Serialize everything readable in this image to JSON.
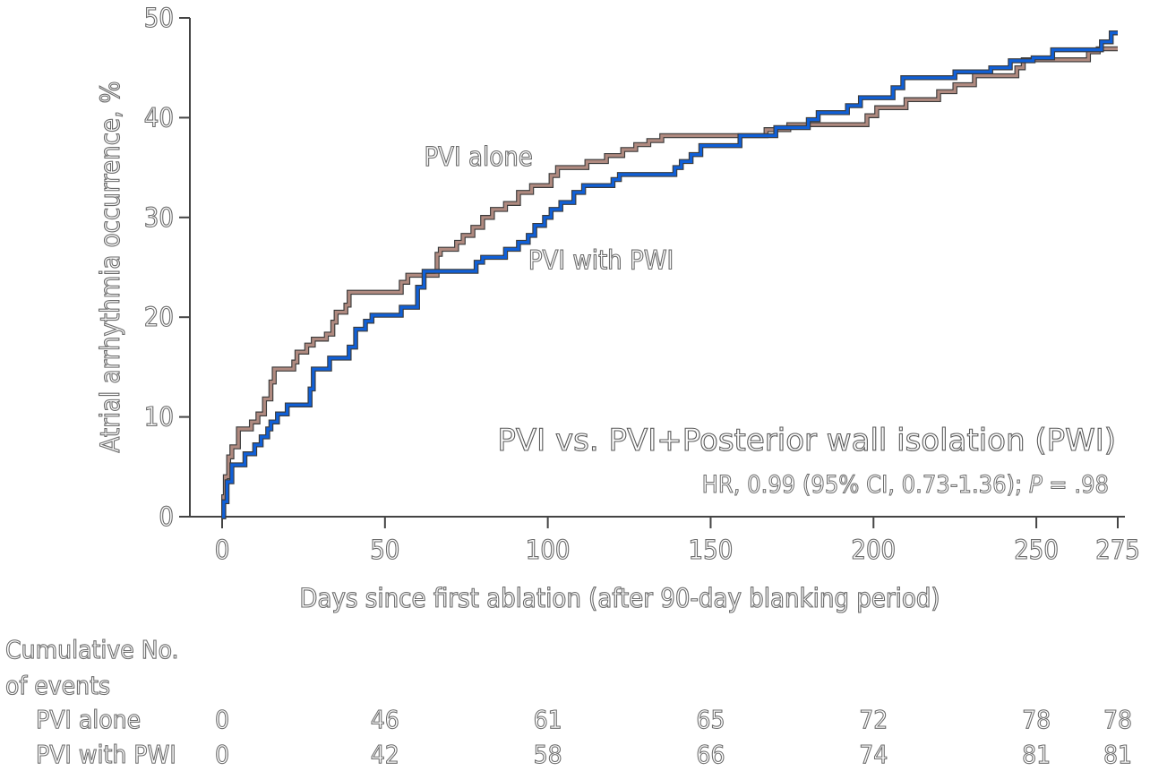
{
  "colors": {
    "pvi_alone": "#b08a80",
    "pvi_with_pwi": "#1060d8",
    "axis": "#444444"
  },
  "chart_data": {
    "type": "line",
    "step": true,
    "xlabel": "Days since first ablation (after 90-day blanking period)",
    "ylabel": "Atrial arrhythmia occurrence, %",
    "xlim": [
      0,
      275
    ],
    "ylim": [
      0,
      50
    ],
    "x_ticks": [
      0,
      50,
      100,
      150,
      200,
      250,
      275
    ],
    "y_ticks": [
      0,
      10,
      20,
      30,
      40,
      50
    ],
    "annotation": {
      "title": "PVI vs. PVI+Posterior wall isolation (PWI)",
      "hr_text_before_p": "HR, 0.99 (95% CI, 0.73-1.36); ",
      "p_symbol": "P",
      "hr_text_after_p": " = .98"
    },
    "series": [
      {
        "name": "PVI alone",
        "points": [
          [
            0,
            0
          ],
          [
            0.5,
            2
          ],
          [
            1,
            4
          ],
          [
            2,
            6
          ],
          [
            3,
            7
          ],
          [
            5,
            8.8
          ],
          [
            9,
            9.5
          ],
          [
            11,
            10.3
          ],
          [
            13,
            11.8
          ],
          [
            15,
            13.5
          ],
          [
            16,
            14.8
          ],
          [
            22,
            15.5
          ],
          [
            23,
            16.5
          ],
          [
            26,
            17.2
          ],
          [
            28,
            17.8
          ],
          [
            32,
            18.3
          ],
          [
            34,
            19.5
          ],
          [
            35,
            20.5
          ],
          [
            38,
            21.2
          ],
          [
            39,
            22.5
          ],
          [
            55,
            23.5
          ],
          [
            57,
            24.2
          ],
          [
            66,
            26.3
          ],
          [
            67,
            26.8
          ],
          [
            72,
            27.5
          ],
          [
            74,
            28.2
          ],
          [
            77,
            29.0
          ],
          [
            80,
            30.0
          ],
          [
            83,
            30.8
          ],
          [
            87,
            31.4
          ],
          [
            91,
            32.5
          ],
          [
            95,
            33.2
          ],
          [
            101,
            34.2
          ],
          [
            103,
            35.0
          ],
          [
            112,
            35.6
          ],
          [
            118,
            36.2
          ],
          [
            123,
            36.8
          ],
          [
            127,
            37.3
          ],
          [
            131,
            37.7
          ],
          [
            135,
            38.2
          ],
          [
            167,
            38.8
          ],
          [
            174,
            39.3
          ],
          [
            198,
            40.2
          ],
          [
            201,
            41.0
          ],
          [
            210,
            41.8
          ],
          [
            220,
            42.6
          ],
          [
            225,
            43.3
          ],
          [
            231,
            44.2
          ],
          [
            244,
            45.0
          ],
          [
            246,
            45.8
          ],
          [
            266,
            46.6
          ],
          [
            269,
            46.9
          ],
          [
            275,
            46.9
          ]
        ]
      },
      {
        "name": "PVI with PWI",
        "points": [
          [
            0,
            0
          ],
          [
            0.5,
            1.5
          ],
          [
            1.5,
            3.5
          ],
          [
            3,
            5.2
          ],
          [
            7,
            6.3
          ],
          [
            10,
            7.2
          ],
          [
            12,
            8.0
          ],
          [
            14,
            8.8
          ],
          [
            15,
            9.5
          ],
          [
            17,
            10.3
          ],
          [
            20,
            11.2
          ],
          [
            27,
            12.8
          ],
          [
            28,
            14.8
          ],
          [
            33,
            15.9
          ],
          [
            39,
            17.0
          ],
          [
            41,
            18.8
          ],
          [
            44,
            19.6
          ],
          [
            46,
            20.2
          ],
          [
            55,
            21.0
          ],
          [
            60,
            23.0
          ],
          [
            62,
            24.6
          ],
          [
            78,
            25.5
          ],
          [
            80,
            26.0
          ],
          [
            87,
            26.8
          ],
          [
            91,
            27.5
          ],
          [
            94,
            28.2
          ],
          [
            96,
            29.2
          ],
          [
            99,
            30.0
          ],
          [
            101,
            30.8
          ],
          [
            104,
            31.5
          ],
          [
            108,
            32.5
          ],
          [
            111,
            33.2
          ],
          [
            120,
            33.8
          ],
          [
            122,
            34.3
          ],
          [
            139,
            35.0
          ],
          [
            141,
            35.6
          ],
          [
            144,
            36.3
          ],
          [
            147,
            37.2
          ],
          [
            159,
            38.2
          ],
          [
            170,
            39.0
          ],
          [
            180,
            39.8
          ],
          [
            183,
            40.5
          ],
          [
            192,
            41.2
          ],
          [
            196,
            42.0
          ],
          [
            206,
            43.0
          ],
          [
            209,
            44.0
          ],
          [
            225,
            44.6
          ],
          [
            236,
            45.0
          ],
          [
            242,
            45.7
          ],
          [
            249,
            46.0
          ],
          [
            255,
            46.8
          ],
          [
            270,
            47.6
          ],
          [
            273,
            48.5
          ],
          [
            275,
            48.5
          ]
        ]
      }
    ],
    "series_labels": [
      {
        "series": "PVI alone",
        "text": "PVI alone",
        "at": [
          62,
          35.2
        ]
      },
      {
        "series": "PVI with PWI",
        "text": "PVI with PWI",
        "at": [
          94,
          24.8
        ]
      }
    ],
    "risk_table": {
      "title_line1": "Cumulative No.",
      "title_line2": "of events",
      "x": [
        0,
        50,
        100,
        150,
        200,
        250,
        275
      ],
      "rows": [
        {
          "label": "PVI alone",
          "values": [
            "0",
            "46",
            "61",
            "65",
            "72",
            "78",
            "78"
          ]
        },
        {
          "label": "PVI with PWI",
          "values": [
            "0",
            "42",
            "58",
            "66",
            "74",
            "81",
            "81"
          ]
        }
      ]
    }
  }
}
